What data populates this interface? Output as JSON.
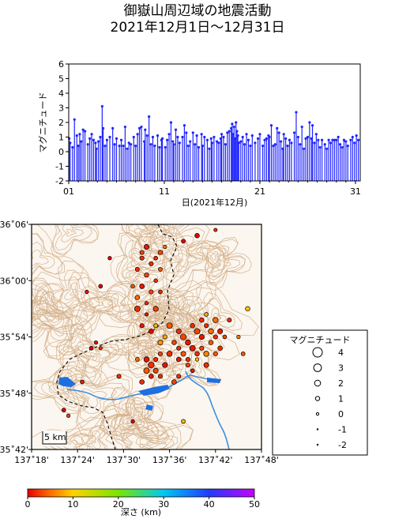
{
  "title_line1": "御嶽山周辺域の地震活動",
  "title_line2": "2021年12月1日～12月31日",
  "chart_data": [
    {
      "type": "stem",
      "ylabel": "マグニチュード",
      "xlabel": "日(2021年12月)",
      "xlim": [
        1,
        31.5
      ],
      "ylim": [
        -2,
        6
      ],
      "yticks": [
        -2,
        -1,
        0,
        1,
        2,
        3,
        4,
        5,
        6
      ],
      "xticks": [
        {
          "v": 1,
          "label": "01"
        },
        {
          "v": 11,
          "label": "11"
        },
        {
          "v": 21,
          "label": "21"
        },
        {
          "v": 31,
          "label": "31"
        }
      ],
      "color": "#1f24ff",
      "events": [
        [
          1.05,
          0.9
        ],
        [
          1.15,
          0.6
        ],
        [
          1.4,
          0.3
        ],
        [
          1.6,
          2.2
        ],
        [
          1.85,
          1.1
        ],
        [
          2.0,
          0.4
        ],
        [
          2.15,
          1.2
        ],
        [
          2.3,
          0.7
        ],
        [
          2.5,
          1.5
        ],
        [
          2.7,
          1.4
        ],
        [
          3.0,
          0.5
        ],
        [
          3.2,
          0.9
        ],
        [
          3.4,
          1.2
        ],
        [
          3.6,
          0.8
        ],
        [
          3.8,
          0.6
        ],
        [
          3.9,
          0.2
        ],
        [
          4.1,
          0.7
        ],
        [
          4.3,
          1.0
        ],
        [
          4.5,
          3.1
        ],
        [
          4.6,
          1.6
        ],
        [
          4.8,
          0.4
        ],
        [
          5.0,
          0.8
        ],
        [
          5.3,
          1.0
        ],
        [
          5.6,
          1.6
        ],
        [
          5.8,
          0.5
        ],
        [
          6.0,
          0.9
        ],
        [
          6.3,
          0.4
        ],
        [
          6.5,
          0.8
        ],
        [
          6.7,
          0.4
        ],
        [
          6.9,
          1.7
        ],
        [
          7.1,
          0.2
        ],
        [
          7.3,
          0.6
        ],
        [
          7.5,
          0.5
        ],
        [
          7.8,
          1.0
        ],
        [
          8.0,
          0.4
        ],
        [
          8.2,
          1.2
        ],
        [
          8.4,
          1.6
        ],
        [
          8.6,
          1.7
        ],
        [
          8.9,
          0.7
        ],
        [
          9.0,
          1.5
        ],
        [
          9.2,
          1.1
        ],
        [
          9.4,
          2.4
        ],
        [
          9.6,
          0.5
        ],
        [
          9.8,
          1.0
        ],
        [
          10.0,
          0.4
        ],
        [
          10.3,
          1.1
        ],
        [
          10.5,
          0.3
        ],
        [
          10.7,
          0.8
        ],
        [
          10.8,
          0.9
        ],
        [
          11.1,
          0.3
        ],
        [
          11.3,
          0.8
        ],
        [
          11.5,
          1.2
        ],
        [
          11.7,
          2.0
        ],
        [
          11.9,
          0.7
        ],
        [
          12.0,
          0.5
        ],
        [
          12.2,
          1.5
        ],
        [
          12.4,
          1.0
        ],
        [
          12.6,
          0.6
        ],
        [
          12.9,
          1.0
        ],
        [
          13.1,
          1.8
        ],
        [
          13.3,
          1.3
        ],
        [
          13.5,
          0.4
        ],
        [
          13.7,
          0.7
        ],
        [
          14.0,
          1.3
        ],
        [
          14.2,
          0.5
        ],
        [
          14.4,
          1.1
        ],
        [
          14.6,
          0.3
        ],
        [
          14.9,
          1.2
        ],
        [
          15.0,
          0.4
        ],
        [
          15.2,
          1.0
        ],
        [
          15.5,
          0.8
        ],
        [
          15.7,
          0.2
        ],
        [
          15.9,
          0.9
        ],
        [
          16.0,
          0.6
        ],
        [
          16.2,
          1.0
        ],
        [
          16.5,
          0.7
        ],
        [
          16.7,
          0.6
        ],
        [
          16.9,
          0.9
        ],
        [
          17.0,
          1.2
        ],
        [
          17.2,
          1.0
        ],
        [
          17.4,
          0.5
        ],
        [
          17.6,
          1.3
        ],
        [
          17.8,
          1.4
        ],
        [
          18.0,
          1.6
        ],
        [
          18.1,
          1.9
        ],
        [
          18.2,
          1.2
        ],
        [
          18.3,
          1.7
        ],
        [
          18.4,
          0.9
        ],
        [
          18.5,
          2.0
        ],
        [
          18.6,
          1.4
        ],
        [
          18.7,
          1.1
        ],
        [
          18.8,
          0.6
        ],
        [
          19.0,
          0.7
        ],
        [
          19.2,
          1.0
        ],
        [
          19.4,
          0.5
        ],
        [
          19.6,
          1.2
        ],
        [
          19.8,
          0.8
        ],
        [
          20.0,
          0.4
        ],
        [
          20.2,
          1.1
        ],
        [
          20.5,
          0.6
        ],
        [
          20.8,
          0.9
        ],
        [
          21.0,
          1.2
        ],
        [
          21.3,
          0.4
        ],
        [
          21.5,
          0.8
        ],
        [
          21.7,
          0.9
        ],
        [
          21.9,
          1.1
        ],
        [
          22.0,
          1.0
        ],
        [
          22.2,
          1.8
        ],
        [
          22.4,
          0.4
        ],
        [
          22.6,
          0.5
        ],
        [
          22.8,
          1.6
        ],
        [
          23.0,
          1.3
        ],
        [
          23.2,
          0.7
        ],
        [
          23.4,
          0.2
        ],
        [
          23.5,
          1.2
        ],
        [
          23.7,
          0.9
        ],
        [
          23.9,
          0.4
        ],
        [
          24.1,
          0.8
        ],
        [
          24.3,
          0.6
        ],
        [
          24.6,
          1.3
        ],
        [
          24.8,
          2.7
        ],
        [
          25.0,
          1.0
        ],
        [
          25.2,
          0.5
        ],
        [
          25.4,
          1.7
        ],
        [
          25.6,
          0.2
        ],
        [
          25.8,
          0.9
        ],
        [
          26.0,
          1.0
        ],
        [
          26.2,
          2.0
        ],
        [
          26.4,
          0.9
        ],
        [
          26.5,
          1.8
        ],
        [
          26.7,
          0.6
        ],
        [
          26.9,
          1.2
        ],
        [
          27.1,
          0.8
        ],
        [
          27.3,
          0.3
        ],
        [
          27.5,
          0.8
        ],
        [
          27.8,
          0.5
        ],
        [
          28.0,
          0.2
        ],
        [
          28.2,
          0.8
        ],
        [
          28.4,
          0.6
        ],
        [
          28.6,
          0.8
        ],
        [
          28.8,
          0.8
        ],
        [
          29.0,
          0.8
        ],
        [
          29.2,
          1.0
        ],
        [
          29.4,
          0.5
        ],
        [
          29.6,
          0.3
        ],
        [
          29.8,
          0.8
        ],
        [
          30.0,
          0.7
        ],
        [
          30.2,
          0.4
        ],
        [
          30.5,
          0.8
        ],
        [
          30.7,
          1.0
        ],
        [
          30.9,
          0.6
        ],
        [
          31.1,
          1.1
        ],
        [
          31.3,
          0.8
        ]
      ]
    },
    {
      "type": "scatter",
      "xlabel_ticks": [
        "137˚18'",
        "137˚24'",
        "137˚30'",
        "137˚36'",
        "137˚42'",
        "137˚48'"
      ],
      "ylabel_ticks": [
        "35˚42'",
        "35˚48'",
        "35˚54'",
        "36˚00'",
        "36˚06'"
      ],
      "xlim": [
        137.3,
        137.8
      ],
      "ylim": [
        35.7,
        36.1
      ],
      "x_tick_values": [
        137.3,
        137.4,
        137.5,
        137.6,
        137.7,
        137.8
      ],
      "y_tick_values": [
        35.7,
        35.8,
        35.9,
        36.0,
        36.1
      ],
      "scale_label": "5 km",
      "color_by": "depth_km",
      "size_by": "magnitude",
      "points": [
        [
          137.63,
          36.07,
          0,
          0.8
        ],
        [
          137.66,
          36.08,
          0,
          1.2
        ],
        [
          137.7,
          36.09,
          2,
          0.5
        ],
        [
          137.54,
          36.05,
          3,
          1.0
        ],
        [
          137.55,
          36.06,
          1,
          1.4
        ],
        [
          137.57,
          36.04,
          2,
          0.8
        ],
        [
          137.58,
          36.05,
          3,
          1.2
        ],
        [
          137.59,
          36.06,
          5,
          0.6
        ],
        [
          137.56,
          36.03,
          2,
          1.0
        ],
        [
          137.58,
          36.02,
          4,
          0.8
        ],
        [
          137.53,
          36.02,
          2,
          0.9
        ],
        [
          137.55,
          36.01,
          3,
          1.1
        ],
        [
          137.57,
          36.0,
          2,
          0.7
        ],
        [
          137.54,
          35.99,
          1,
          1.3
        ],
        [
          137.56,
          35.98,
          3,
          1.0
        ],
        [
          137.58,
          35.98,
          2,
          0.8
        ],
        [
          137.53,
          35.97,
          5,
          1.2
        ],
        [
          137.55,
          35.96,
          2,
          0.6
        ],
        [
          137.57,
          35.95,
          3,
          1.5
        ],
        [
          137.52,
          35.99,
          4,
          0.8
        ],
        [
          137.54,
          36.04,
          2,
          1.0
        ],
        [
          137.47,
          36.04,
          0,
          0.6
        ],
        [
          137.45,
          35.99,
          0,
          0.8
        ],
        [
          137.42,
          35.98,
          1,
          0.6
        ],
        [
          137.53,
          35.95,
          2,
          1.8
        ],
        [
          137.55,
          35.94,
          1,
          0.5
        ],
        [
          137.56,
          35.91,
          0,
          1.2
        ],
        [
          137.54,
          35.92,
          1,
          1.0
        ],
        [
          137.6,
          35.92,
          4,
          1.8
        ],
        [
          137.62,
          35.91,
          2,
          1.4
        ],
        [
          137.63,
          35.9,
          3,
          2.0
        ],
        [
          137.64,
          35.89,
          1,
          1.6
        ],
        [
          137.65,
          35.92,
          2,
          1.2
        ],
        [
          137.66,
          35.91,
          3,
          1.8
        ],
        [
          137.67,
          35.9,
          1,
          1.4
        ],
        [
          137.68,
          35.92,
          2,
          1.0
        ],
        [
          137.69,
          35.91,
          5,
          1.6
        ],
        [
          137.61,
          35.89,
          3,
          1.2
        ],
        [
          137.62,
          35.88,
          2,
          1.0
        ],
        [
          137.63,
          35.87,
          4,
          1.4
        ],
        [
          137.64,
          35.86,
          2,
          1.0
        ],
        [
          137.65,
          35.88,
          1,
          1.8
        ],
        [
          137.66,
          35.87,
          2,
          1.2
        ],
        [
          137.67,
          35.88,
          3,
          1.0
        ],
        [
          137.68,
          35.87,
          6,
          1.6
        ],
        [
          137.69,
          35.89,
          4,
          1.2
        ],
        [
          137.7,
          35.9,
          2,
          1.0
        ],
        [
          137.71,
          35.91,
          1,
          1.4
        ],
        [
          137.72,
          35.9,
          3,
          0.8
        ],
        [
          137.71,
          35.88,
          2,
          1.2
        ],
        [
          137.7,
          35.87,
          4,
          1.0
        ],
        [
          137.67,
          35.93,
          2,
          1.2
        ],
        [
          137.68,
          35.94,
          8,
          0.8
        ],
        [
          137.7,
          35.93,
          5,
          1.6
        ],
        [
          137.73,
          35.93,
          2,
          1.0
        ],
        [
          137.75,
          35.9,
          6,
          0.6
        ],
        [
          137.76,
          35.87,
          4,
          0.8
        ],
        [
          137.66,
          35.86,
          9,
          0.6
        ],
        [
          137.68,
          35.85,
          2,
          1.4
        ],
        [
          137.64,
          35.85,
          3,
          1.0
        ],
        [
          137.62,
          35.86,
          1,
          1.2
        ],
        [
          137.6,
          35.87,
          2,
          1.6
        ],
        [
          137.58,
          35.89,
          7,
          1.4
        ],
        [
          137.59,
          35.9,
          8,
          1.0
        ],
        [
          137.57,
          35.92,
          9,
          0.8
        ],
        [
          137.55,
          35.86,
          1,
          1.6
        ],
        [
          137.56,
          35.85,
          2,
          2.0
        ],
        [
          137.57,
          35.84,
          3,
          1.4
        ],
        [
          137.58,
          35.83,
          2,
          1.0
        ],
        [
          137.56,
          35.83,
          1,
          1.2
        ],
        [
          137.55,
          35.84,
          4,
          1.8
        ],
        [
          137.57,
          35.86,
          2,
          1.0
        ],
        [
          137.59,
          35.85,
          1,
          1.4
        ],
        [
          137.58,
          35.87,
          3,
          1.0
        ],
        [
          137.54,
          35.82,
          2,
          1.2
        ],
        [
          137.53,
          35.86,
          5,
          0.8
        ],
        [
          137.49,
          35.83,
          2,
          1.0
        ],
        [
          137.41,
          35.82,
          1,
          0.8
        ],
        [
          137.37,
          35.77,
          0,
          0.8
        ],
        [
          137.38,
          35.76,
          3,
          0.6
        ],
        [
          137.52,
          35.75,
          0,
          0.6
        ],
        [
          137.63,
          35.75,
          9,
          0.8
        ],
        [
          137.44,
          35.89,
          1,
          0.6
        ],
        [
          137.43,
          35.88,
          0,
          0.8
        ],
        [
          137.45,
          35.88,
          2,
          0.5
        ],
        [
          137.77,
          35.95,
          9,
          1.2
        ],
        [
          137.62,
          35.83,
          2,
          1.0
        ],
        [
          137.65,
          35.84,
          1,
          0.8
        ],
        [
          137.61,
          35.82,
          3,
          1.2
        ]
      ]
    }
  ],
  "legend": {
    "title": "マグニチュード",
    "items": [
      {
        "m": 4,
        "label": "4"
      },
      {
        "m": 3,
        "label": "3"
      },
      {
        "m": 2,
        "label": "2"
      },
      {
        "m": 1,
        "label": "1"
      },
      {
        "m": 0,
        "label": "0"
      },
      {
        "m": -1,
        "label": "-1"
      },
      {
        "m": -2,
        "label": "-2"
      }
    ]
  },
  "colorbar": {
    "label": "深さ (km)",
    "range": [
      0,
      50
    ],
    "ticks": [
      {
        "v": 0,
        "label": "0"
      },
      {
        "v": 10,
        "label": "10"
      },
      {
        "v": 20,
        "label": "20"
      },
      {
        "v": 30,
        "label": "30"
      },
      {
        "v": 40,
        "label": "40"
      },
      {
        "v": 50,
        "label": "50"
      }
    ]
  }
}
